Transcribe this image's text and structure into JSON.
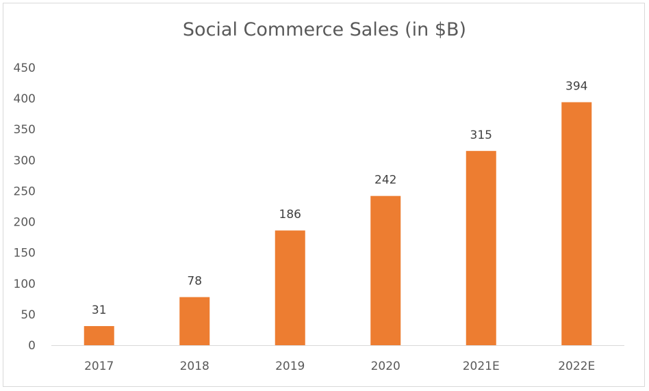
{
  "chart_data": {
    "type": "bar",
    "title": "Social Commerce Sales (in $B)",
    "categories": [
      "2017",
      "2018",
      "2019",
      "2020",
      "2021E",
      "2022E"
    ],
    "series": [
      {
        "values": [
          31,
          78,
          186,
          242,
          315,
          394
        ]
      }
    ],
    "data_labels": [
      "31",
      "78",
      "186",
      "242",
      "315",
      "394"
    ],
    "y_ticks": [
      "0",
      "50",
      "100",
      "150",
      "200",
      "250",
      "300",
      "350",
      "400",
      "450"
    ],
    "ylim": [
      0,
      450
    ],
    "xlabel": "",
    "ylabel": "",
    "grid": false,
    "legend": "none",
    "colors": {
      "bar": "#ed7d31",
      "axis": "#d9d9d9"
    }
  }
}
